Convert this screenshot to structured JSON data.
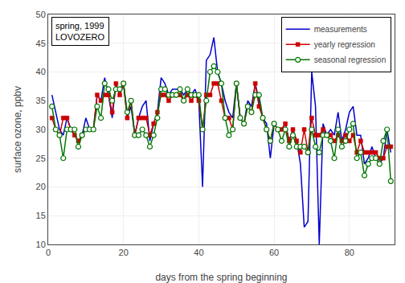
{
  "chart_data": {
    "type": "line",
    "annotations": [
      "spring, 1999",
      "LOVOZERO"
    ],
    "x_label": "days from the spring beginning",
    "y_label": "surface ozone, ppbv",
    "x": [
      1,
      2,
      3,
      4,
      5,
      6,
      7,
      8,
      9,
      10,
      11,
      12,
      13,
      14,
      15,
      16,
      17,
      18,
      19,
      20,
      21,
      22,
      23,
      24,
      25,
      26,
      27,
      28,
      29,
      30,
      31,
      32,
      33,
      34,
      35,
      36,
      37,
      38,
      39,
      40,
      41,
      42,
      43,
      44,
      45,
      46,
      47,
      48,
      49,
      50,
      51,
      52,
      53,
      54,
      55,
      56,
      57,
      58,
      59,
      60,
      61,
      62,
      63,
      64,
      65,
      66,
      67,
      68,
      69,
      70,
      71,
      72,
      73,
      74,
      75,
      76,
      77,
      78,
      79,
      80,
      81,
      82,
      83,
      84,
      85,
      86,
      87,
      88,
      89,
      90,
      91
    ],
    "series": [
      {
        "name": "measurements",
        "color": "#0000cc",
        "marker": "none",
        "line_style": "solid",
        "values": [
          36,
          33,
          30,
          29,
          32,
          30,
          29,
          28,
          29,
          32,
          30,
          30,
          36,
          35,
          39,
          36,
          32,
          38,
          36,
          38,
          32,
          34,
          29,
          32,
          34,
          35,
          28,
          31,
          33,
          39,
          38,
          36,
          37,
          37,
          37,
          36,
          37,
          36,
          37,
          35,
          20,
          42,
          43,
          46,
          40,
          38,
          35,
          33,
          32,
          38,
          32,
          31,
          35,
          34,
          38,
          35,
          32,
          31,
          25,
          31,
          30,
          30,
          31,
          28,
          30,
          28,
          24,
          13,
          14,
          40,
          34,
          10,
          31,
          29,
          30,
          29,
          33,
          28,
          30,
          33,
          34,
          29,
          29,
          24,
          25,
          27,
          25,
          24,
          25,
          30,
          26
        ]
      },
      {
        "name": "yearly regression",
        "color": "#cc0000",
        "marker": "square",
        "line_style": "solid",
        "values": [
          32,
          30,
          29,
          32,
          32,
          30,
          29,
          28,
          29,
          30,
          30,
          30,
          36,
          35,
          36,
          36,
          33,
          38,
          36,
          38,
          32,
          35,
          29,
          32,
          32,
          32,
          29,
          31,
          33,
          36,
          36,
          35,
          36,
          36,
          36,
          35,
          36,
          35,
          36,
          35,
          30,
          36,
          36,
          38,
          38,
          35,
          32,
          32,
          30,
          38,
          32,
          31,
          34,
          33,
          38,
          34,
          32,
          30,
          28,
          31,
          30,
          30,
          31,
          28,
          30,
          28,
          26,
          30,
          26,
          32,
          29,
          29,
          30,
          29,
          29,
          28,
          29,
          28,
          29,
          28,
          29,
          26,
          28,
          26,
          26,
          26,
          26,
          25,
          25,
          27,
          27
        ]
      },
      {
        "name": "seasonal regression",
        "color": "#007700",
        "marker": "open_circle",
        "line_style": "solid",
        "values": [
          34,
          30,
          29,
          25,
          30,
          30,
          30,
          27,
          29,
          30,
          30,
          30,
          34,
          32,
          38,
          37,
          35,
          37,
          37,
          38,
          33,
          35,
          29,
          29,
          30,
          29,
          27,
          29,
          32,
          37,
          37,
          36,
          36,
          36,
          37,
          35,
          37,
          36,
          36,
          36,
          30,
          35,
          40,
          41,
          40,
          38,
          32,
          29,
          30,
          38,
          32,
          31,
          34,
          33,
          36,
          36,
          32,
          30,
          28,
          31,
          30,
          28,
          30,
          27,
          29,
          27,
          27,
          27,
          26,
          30,
          27,
          26,
          29,
          29,
          28,
          25,
          30,
          27,
          28,
          30,
          31,
          25,
          26,
          22,
          24,
          25,
          25,
          24,
          28,
          30,
          21
        ]
      }
    ],
    "xlim": [
      0,
      92
    ],
    "xticks": [
      0,
      20,
      40,
      60,
      80
    ],
    "ylim": [
      10,
      50
    ],
    "yticks": [
      10,
      15,
      20,
      25,
      30,
      35,
      40,
      45,
      50
    ],
    "grid": true,
    "legend": "upper right"
  }
}
